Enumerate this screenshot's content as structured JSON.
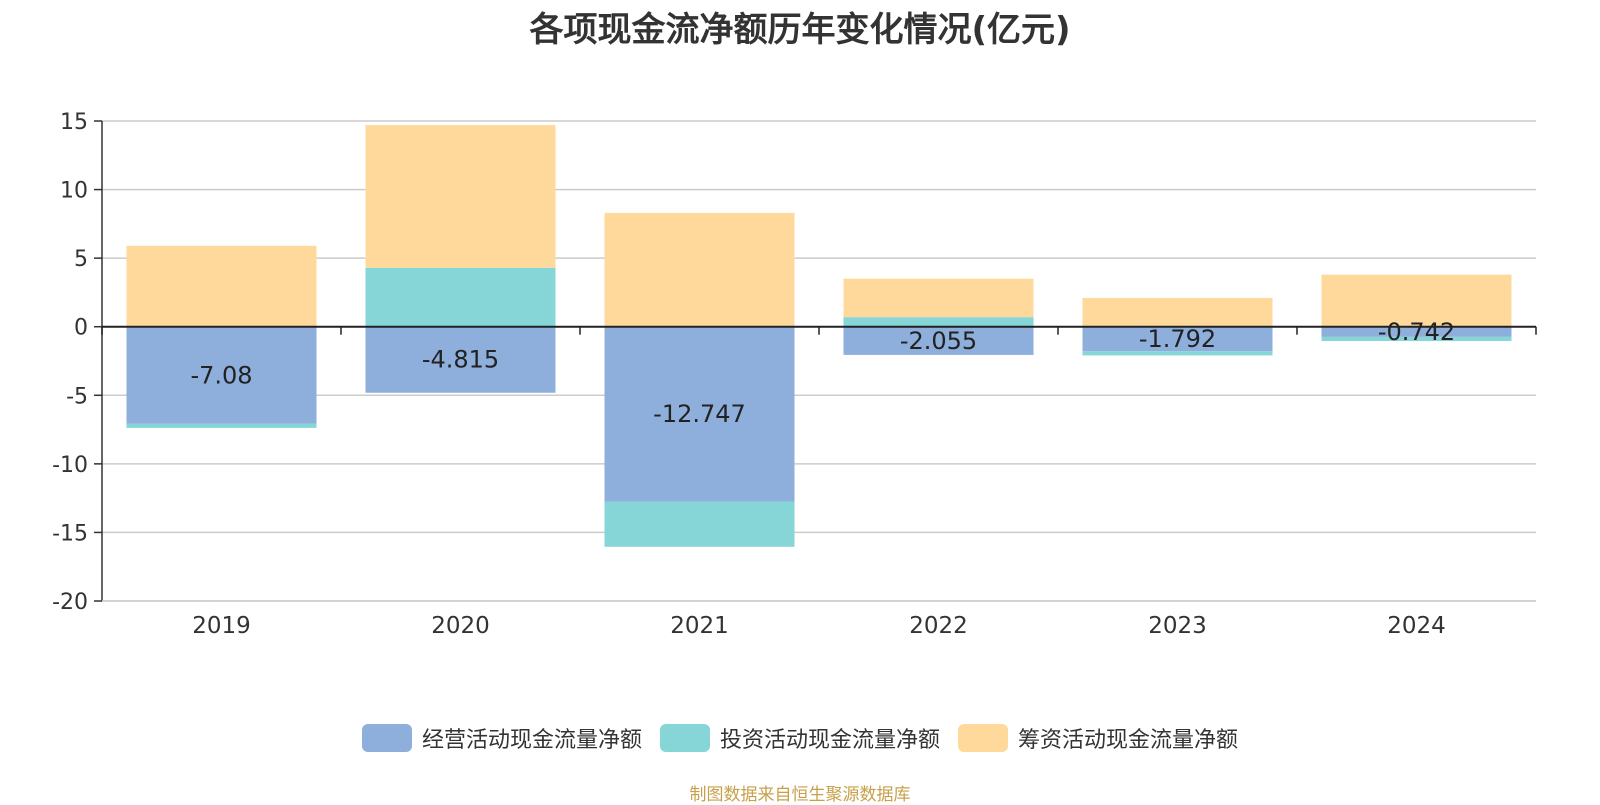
{
  "chart_data": {
    "type": "bar",
    "stacked": true,
    "title": "各项现金流净额历年变化情况(亿元)",
    "categories": [
      "2019",
      "2020",
      "2021",
      "2022",
      "2023",
      "2024"
    ],
    "series": [
      {
        "name": "经营活动现金流量净额",
        "color": "#8eaedb",
        "values": [
          -7.08,
          -4.815,
          -12.747,
          -2.055,
          -1.792,
          -0.742
        ],
        "labels": [
          "-7.08",
          "-4.815",
          "-12.747",
          "-2.055",
          "-1.792",
          "-0.742"
        ]
      },
      {
        "name": "投资活动现金流量净额",
        "color": "#86d6d8",
        "values": [
          -0.3,
          4.3,
          -3.3,
          0.7,
          -0.3,
          -0.3
        ]
      },
      {
        "name": "筹资活动现金流量净额",
        "color": "#fed99b",
        "values": [
          5.9,
          10.4,
          8.3,
          2.8,
          2.1,
          3.8
        ]
      }
    ],
    "ylim": [
      -20,
      15
    ],
    "yticks": [
      15,
      10,
      5,
      0,
      -5,
      -10,
      -15,
      -20
    ],
    "grid": true,
    "legend_position": "bottom"
  },
  "source": "制图数据来自恒生聚源数据库"
}
